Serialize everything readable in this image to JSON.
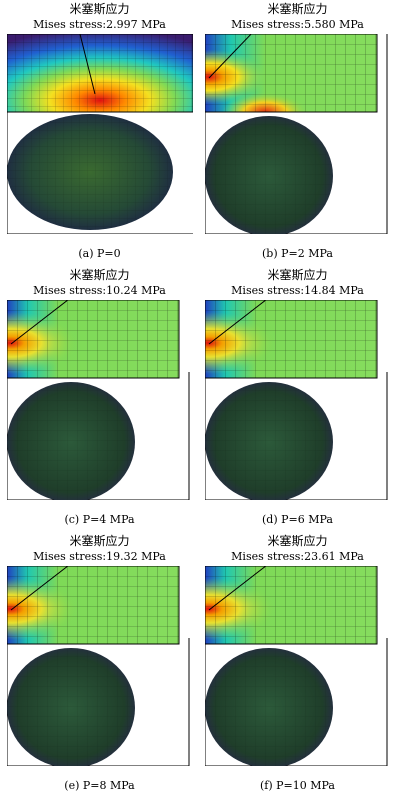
{
  "panels": [
    {
      "cn": "米塞斯应力",
      "stress_label": "Mises stress:",
      "stress_value": "2.997 MPa",
      "caption": "(a) P=0",
      "style": "a"
    },
    {
      "cn": "米塞斯应力",
      "stress_label": "Mises stress:",
      "stress_value": "5.580 MPa",
      "caption": "(b) P=2 MPa",
      "style": "b"
    },
    {
      "cn": "米塞斯应力",
      "stress_label": "Mises stress:",
      "stress_value": "10.24 MPa",
      "caption": "(c) P=4 MPa",
      "style": "c"
    },
    {
      "cn": "米塞斯应力",
      "stress_label": "Mises stress:",
      "stress_value": "14.84 MPa",
      "caption": "(d) P=6 MPa",
      "style": "c"
    },
    {
      "cn": "米塞斯应力",
      "stress_label": "Mises stress:",
      "stress_value": "19.32 MPa",
      "caption": "(e) P=8 MPa",
      "style": "c"
    },
    {
      "cn": "米塞斯应力",
      "stress_label": "Mises stress:",
      "stress_value": "23.61 MPa",
      "caption": "(f) P=10 MPa",
      "style": "c"
    }
  ],
  "colors": {
    "mesh_dark": "#1f3e2a",
    "block_green": "#7ed957",
    "hot_red": "#e01010",
    "cold_blue": "#2030c0",
    "purple": "#3a1c6e"
  }
}
